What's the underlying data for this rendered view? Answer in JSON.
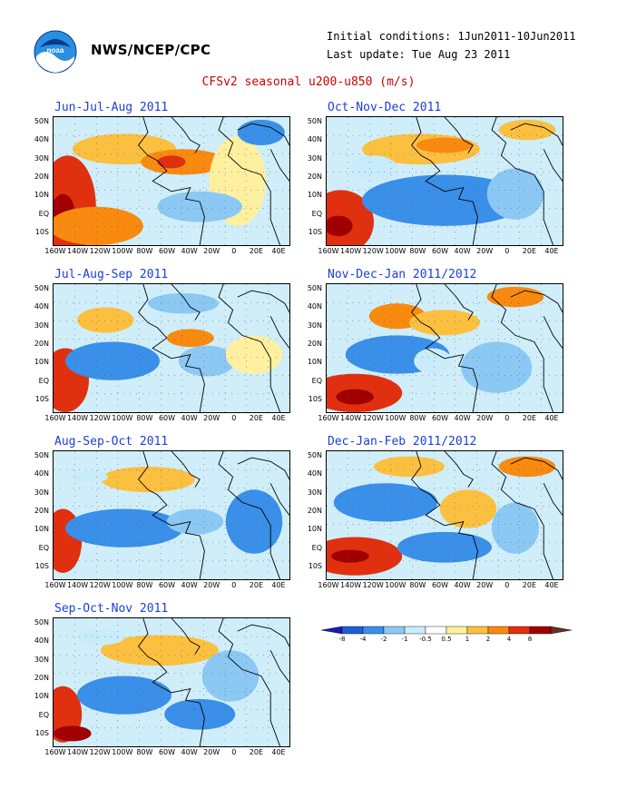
{
  "header": {
    "org": "NWS/NCEP/CPC",
    "initial_conditions": "Initial conditions: 1Jun2011-10Jun2011",
    "last_update": "Last update: Tue Aug 23 2011",
    "title": "CFSv2 seasonal u200-u850 (m/s)",
    "logo": "noaa-logo"
  },
  "axes": {
    "lat_labels": [
      "50N",
      "40N",
      "30N",
      "20N",
      "10N",
      "EQ",
      "10S"
    ],
    "lon_labels": [
      "160W",
      "140W",
      "120W",
      "100W",
      "80W",
      "60W",
      "40W",
      "20W",
      "0",
      "20E",
      "40E"
    ]
  },
  "panels": [
    {
      "title": "Jun-Jul-Aug 2011"
    },
    {
      "title": "Oct-Nov-Dec 2011"
    },
    {
      "title": "Jul-Aug-Sep 2011"
    },
    {
      "title": "Nov-Dec-Jan 2011/2012"
    },
    {
      "title": "Aug-Sep-Oct 2011"
    },
    {
      "title": "Dec-Jan-Feb 2011/2012"
    },
    {
      "title": "Sep-Oct-Nov 2011"
    }
  ],
  "legend": {
    "labels": [
      "-8",
      "-4",
      "-2",
      "-1",
      "-0.5",
      "0.5",
      "1",
      "2",
      "4",
      "8"
    ],
    "colors": [
      "#1a1ab0",
      "#1f5fd6",
      "#3a8fe8",
      "#8cc8f4",
      "#c8ecfa",
      "#ffffff",
      "#fff0a0",
      "#fcc040",
      "#f88a10",
      "#e03010",
      "#a00000",
      "#6a3020"
    ]
  },
  "colors": {
    "title_blue": "#1a3fd8",
    "title_red": "#cc0000"
  }
}
